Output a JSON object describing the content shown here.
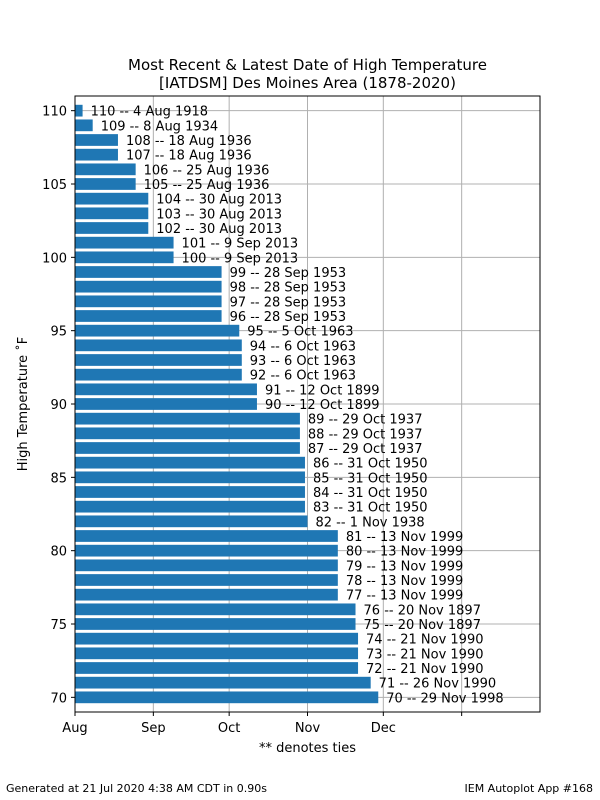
{
  "title": "Most Recent & Latest Date of High Temperature",
  "subtitle": "[IATDSM] Des Moines Area (1878-2020)",
  "footer_left": "Generated at 21 Jul 2020 4:38 AM CDT in 0.90s",
  "footer_right": "IEM Autoplot App #168",
  "colors": {
    "bar": "#1f77b4",
    "grid": "#b0b0b0"
  },
  "chart_data": {
    "type": "bar",
    "orientation": "horizontal",
    "xlabel": "** denotes ties",
    "ylabel": "High Temperature ˚F",
    "x_ticks": [
      "Aug",
      "Sep",
      "Oct",
      "Nov",
      "Dec",
      ""
    ],
    "x_unit": "day of year",
    "x_tick_days": [
      213,
      244,
      274,
      305,
      335,
      366
    ],
    "xlim": [
      213,
      397
    ],
    "ylim": [
      69,
      111
    ],
    "y_ticks": [
      70,
      75,
      80,
      85,
      90,
      95,
      100,
      105,
      110
    ],
    "grid": true,
    "bars": [
      {
        "temp": 110,
        "day": 216,
        "label": "110 -- 4 Aug 1918"
      },
      {
        "temp": 109,
        "day": 220,
        "label": "109 -- 8 Aug 1934"
      },
      {
        "temp": 108,
        "day": 230,
        "label": "108 -- 18 Aug 1936"
      },
      {
        "temp": 107,
        "day": 230,
        "label": "107 -- 18 Aug 1936"
      },
      {
        "temp": 106,
        "day": 237,
        "label": "106 -- 25 Aug 1936"
      },
      {
        "temp": 105,
        "day": 237,
        "label": "105 -- 25 Aug 1936"
      },
      {
        "temp": 104,
        "day": 242,
        "label": "104 -- 30 Aug 2013"
      },
      {
        "temp": 103,
        "day": 242,
        "label": "103 -- 30 Aug 2013"
      },
      {
        "temp": 102,
        "day": 242,
        "label": "102 -- 30 Aug 2013"
      },
      {
        "temp": 101,
        "day": 252,
        "label": "101 -- 9 Sep 2013"
      },
      {
        "temp": 100,
        "day": 252,
        "label": "100 -- 9 Sep 2013"
      },
      {
        "temp": 99,
        "day": 271,
        "label": "99 -- 28 Sep 1953"
      },
      {
        "temp": 98,
        "day": 271,
        "label": "98 -- 28 Sep 1953"
      },
      {
        "temp": 97,
        "day": 271,
        "label": "97 -- 28 Sep 1953"
      },
      {
        "temp": 96,
        "day": 271,
        "label": "96 -- 28 Sep 1953"
      },
      {
        "temp": 95,
        "day": 278,
        "label": "95 -- 5 Oct 1963"
      },
      {
        "temp": 94,
        "day": 279,
        "label": "94 -- 6 Oct 1963"
      },
      {
        "temp": 93,
        "day": 279,
        "label": "93 -- 6 Oct 1963"
      },
      {
        "temp": 92,
        "day": 279,
        "label": "92 -- 6 Oct 1963"
      },
      {
        "temp": 91,
        "day": 285,
        "label": "91 -- 12 Oct 1899"
      },
      {
        "temp": 90,
        "day": 285,
        "label": "90 -- 12 Oct 1899"
      },
      {
        "temp": 89,
        "day": 302,
        "label": "89 -- 29 Oct 1937"
      },
      {
        "temp": 88,
        "day": 302,
        "label": "88 -- 29 Oct 1937"
      },
      {
        "temp": 87,
        "day": 302,
        "label": "87 -- 29 Oct 1937"
      },
      {
        "temp": 86,
        "day": 304,
        "label": "86 -- 31 Oct 1950"
      },
      {
        "temp": 85,
        "day": 304,
        "label": "85 -- 31 Oct 1950"
      },
      {
        "temp": 84,
        "day": 304,
        "label": "84 -- 31 Oct 1950"
      },
      {
        "temp": 83,
        "day": 304,
        "label": "83 -- 31 Oct 1950"
      },
      {
        "temp": 82,
        "day": 305,
        "label": "82 -- 1 Nov 1938"
      },
      {
        "temp": 81,
        "day": 317,
        "label": "81 -- 13 Nov 1999"
      },
      {
        "temp": 80,
        "day": 317,
        "label": "80 -- 13 Nov 1999"
      },
      {
        "temp": 79,
        "day": 317,
        "label": "79 -- 13 Nov 1999"
      },
      {
        "temp": 78,
        "day": 317,
        "label": "78 -- 13 Nov 1999"
      },
      {
        "temp": 77,
        "day": 317,
        "label": "77 -- 13 Nov 1999"
      },
      {
        "temp": 76,
        "day": 324,
        "label": "76 -- 20 Nov 1897"
      },
      {
        "temp": 75,
        "day": 324,
        "label": "75 -- 20 Nov 1897"
      },
      {
        "temp": 74,
        "day": 325,
        "label": "74 -- 21 Nov 1990"
      },
      {
        "temp": 73,
        "day": 325,
        "label": "73 -- 21 Nov 1990"
      },
      {
        "temp": 72,
        "day": 325,
        "label": "72 -- 21 Nov 1990"
      },
      {
        "temp": 71,
        "day": 330,
        "label": "71 -- 26 Nov 1990"
      },
      {
        "temp": 70,
        "day": 333,
        "label": "70 -- 29 Nov 1998"
      }
    ]
  }
}
